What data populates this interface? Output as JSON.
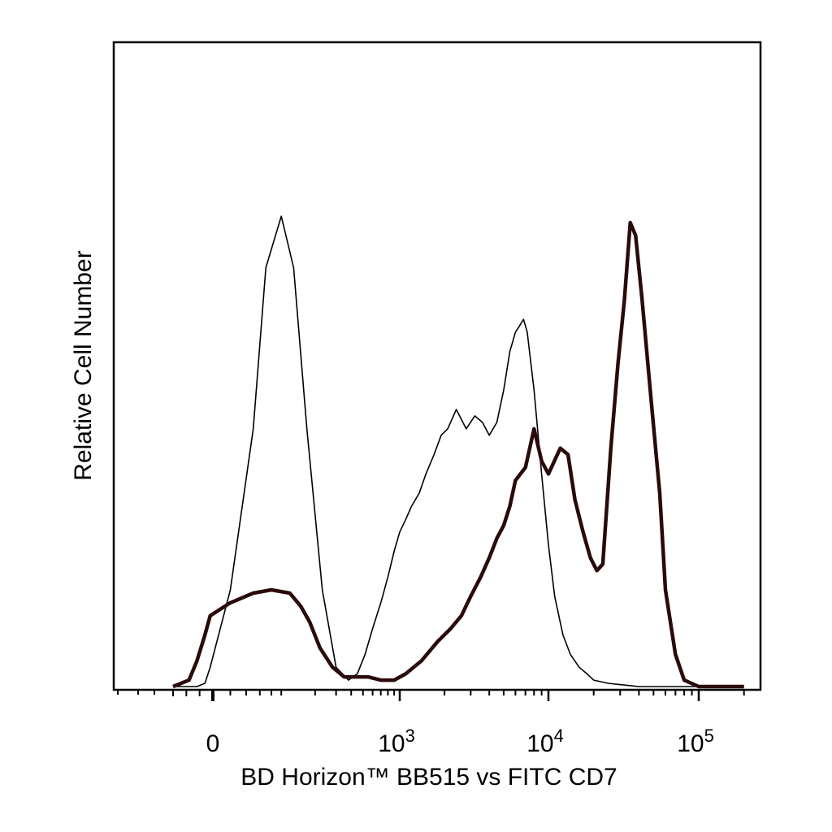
{
  "chart_data": {
    "type": "line",
    "xlabel": "BD Horizon™ BB515  vs  FITC CD7",
    "ylabel": "Relative Cell Number",
    "x_scale": "biexponential",
    "xlim": [
      -300,
      200000
    ],
    "ylim": [
      0,
      100
    ],
    "grid": false,
    "x_tick_labels": [
      {
        "value": 0,
        "base": "0",
        "exp": ""
      },
      {
        "value": 1000,
        "base": "10",
        "exp": "3"
      },
      {
        "value": 10000,
        "base": "10",
        "exp": "4"
      },
      {
        "value": 100000,
        "base": "10",
        "exp": "5"
      }
    ],
    "series": [
      {
        "style": "thin",
        "color": "#000000",
        "x": [
          -300,
          -120,
          -60,
          -20,
          20,
          50,
          70,
          100,
          130,
          170,
          230,
          300,
          380,
          450,
          520,
          600,
          700,
          800,
          900,
          1000,
          1100,
          1200,
          1350,
          1500,
          1700,
          1900,
          2100,
          2400,
          2800,
          3200,
          3600,
          4000,
          4500,
          5000,
          5500,
          6000,
          6400,
          6800,
          7200,
          8000,
          9000,
          10000,
          11000,
          12500,
          14000,
          16000,
          18000,
          20000,
          25000,
          30000,
          40000,
          60000,
          100000,
          200000
        ],
        "y": [
          0,
          0,
          0.5,
          3,
          15,
          40,
          65,
          73,
          65,
          40,
          15,
          3,
          1,
          2,
          5,
          9,
          13,
          17,
          21,
          24,
          26,
          28,
          30,
          33,
          36,
          39,
          40,
          43,
          40,
          42,
          41,
          39,
          41,
          46,
          52,
          55,
          56,
          57,
          55,
          46,
          33,
          22,
          14,
          8,
          5,
          3,
          2,
          1,
          0.5,
          0.3,
          0,
          0,
          0,
          0
        ]
      },
      {
        "style": "thick",
        "color": "#2a0a0a",
        "x": [
          -300,
          -180,
          -120,
          -60,
          -20,
          20,
          50,
          80,
          120,
          150,
          180,
          220,
          280,
          350,
          450,
          550,
          700,
          900,
          1100,
          1400,
          1800,
          2200,
          2600,
          3000,
          3500,
          4000,
          4500,
          5000,
          5500,
          6000,
          7000,
          8000,
          9000,
          10000,
          12000,
          13500,
          15000,
          17000,
          19000,
          21000,
          23000,
          26000,
          29000,
          32000,
          35000,
          38000,
          42000,
          48000,
          55000,
          60000,
          70000,
          80000,
          100000,
          200000
        ],
        "y": [
          0,
          1,
          4,
          8,
          11,
          13,
          14.5,
          15,
          14.5,
          12.5,
          10,
          6,
          3,
          1.5,
          1.5,
          1.5,
          1,
          1,
          2,
          4,
          7,
          9,
          11,
          14,
          17,
          20,
          23,
          25,
          28,
          32,
          34,
          40,
          35,
          33,
          37,
          36,
          29,
          24,
          20,
          18,
          19,
          37,
          50,
          60,
          72,
          70,
          60,
          45,
          30,
          15,
          5,
          1,
          0,
          0
        ]
      }
    ]
  }
}
